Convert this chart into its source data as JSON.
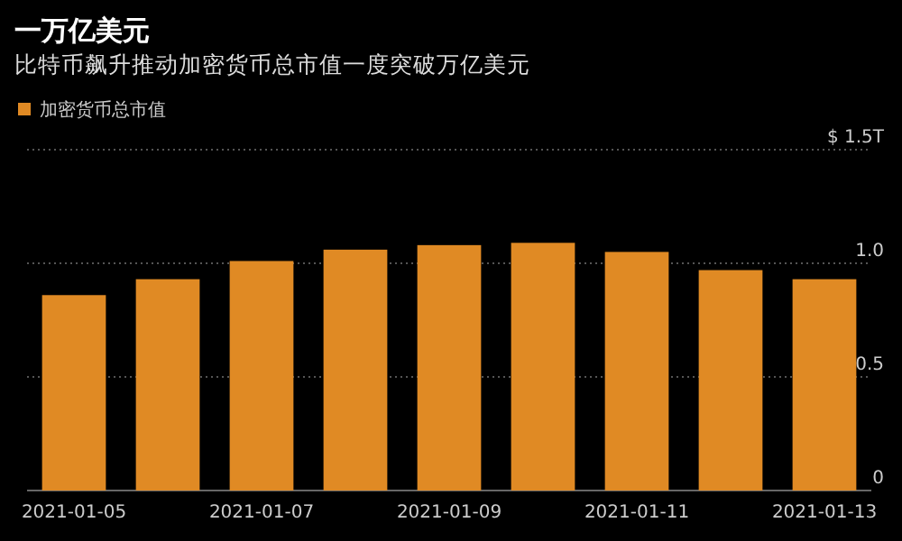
{
  "chart_data": {
    "type": "bar",
    "title": "一万亿美元",
    "subtitle": "比特币飙升推动加密货币总市值一度突破万亿美元",
    "categories": [
      "2021-01-05",
      null,
      "2021-01-07",
      null,
      "2021-01-09",
      null,
      "2021-01-11",
      null,
      "2021-01-13"
    ],
    "series": [
      {
        "name": "加密货币总市值",
        "color": "#e08a24",
        "values": [
          0.86,
          0.93,
          1.01,
          1.06,
          1.08,
          1.09,
          1.05,
          0.97,
          0.93
        ]
      }
    ],
    "ylim": [
      0,
      1.5
    ],
    "yticks": [
      0,
      0.5,
      {
        "value": 1,
        "label": "1.0"
      },
      {
        "value": 1.5,
        "label": "$ 1.5T"
      }
    ],
    "grid": "y",
    "legend": "top left"
  }
}
